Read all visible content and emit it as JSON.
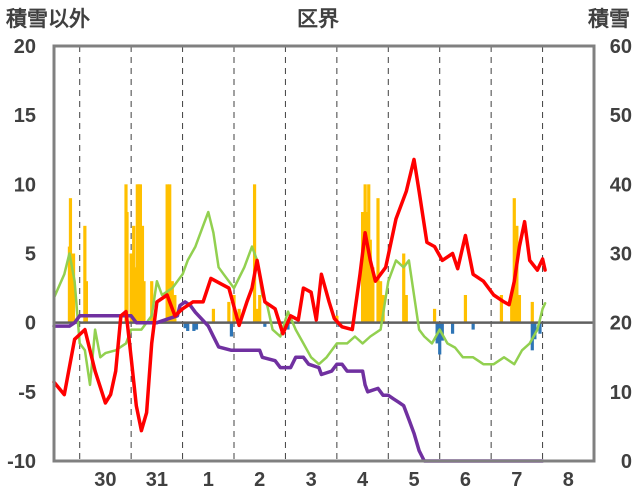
{
  "chart_data": {
    "type": "line",
    "title": "区界",
    "left_axis_label": "積雪以外",
    "right_axis_label": "積雪",
    "left_axis": {
      "min": -10,
      "max": 20,
      "ticks": [
        20,
        15,
        10,
        5,
        0,
        -5,
        -10
      ]
    },
    "right_axis": {
      "min": 0,
      "max": 60,
      "ticks": [
        60,
        50,
        40,
        30,
        20,
        10,
        0
      ]
    },
    "x_ticks": [
      "30",
      "31",
      "1",
      "2",
      "3",
      "4",
      "5",
      "6",
      "7",
      "8"
    ],
    "x_range": [
      -1.0,
      9.5
    ],
    "grid": "vertical dashed lines at day boundaries",
    "colors": {
      "precip_bars": "#ffc000",
      "negative_bars": "#2e75b6",
      "snow_depth": "#7030a0",
      "temperature_red": "#ff0000",
      "temperature_green": "#92d050",
      "frame": "#808080",
      "zero_line": "#606060"
    },
    "series": [
      {
        "axis": "left",
        "style": "line",
        "color_key": "temperature_red",
        "points": [
          [
            -1.0,
            -4.3
          ],
          [
            -0.8,
            -5.2
          ],
          [
            -0.6,
            -1.2
          ],
          [
            -0.4,
            -0.5
          ],
          [
            -0.2,
            -3.5
          ],
          [
            0.0,
            -5.8
          ],
          [
            0.1,
            -5.2
          ],
          [
            0.2,
            -3.5
          ],
          [
            0.3,
            0.5
          ],
          [
            0.4,
            0.8
          ],
          [
            0.5,
            -2.5
          ],
          [
            0.6,
            -6.0
          ],
          [
            0.7,
            -7.8
          ],
          [
            0.8,
            -6.5
          ],
          [
            0.9,
            -1.5
          ],
          [
            1.0,
            1.5
          ],
          [
            1.2,
            2.0
          ],
          [
            1.35,
            0.5
          ],
          [
            1.5,
            1.0
          ],
          [
            1.7,
            1.5
          ],
          [
            1.9,
            1.5
          ],
          [
            2.05,
            3.2
          ],
          [
            2.25,
            2.8
          ],
          [
            2.4,
            2.5
          ],
          [
            2.6,
            -0.2
          ],
          [
            2.75,
            1.5
          ],
          [
            2.85,
            2.5
          ],
          [
            2.95,
            4.5
          ],
          [
            3.1,
            1.5
          ],
          [
            3.3,
            1.0
          ],
          [
            3.45,
            -0.8
          ],
          [
            3.6,
            0.5
          ],
          [
            3.75,
            0.2
          ],
          [
            3.85,
            2.5
          ],
          [
            4.0,
            2.2
          ],
          [
            4.1,
            0.2
          ],
          [
            4.2,
            3.5
          ],
          [
            4.35,
            1.5
          ],
          [
            4.45,
            0.3
          ],
          [
            4.6,
            -0.3
          ],
          [
            4.8,
            -0.5
          ],
          [
            4.95,
            3.5
          ],
          [
            5.05,
            6.5
          ],
          [
            5.15,
            4.5
          ],
          [
            5.25,
            3.0
          ],
          [
            5.45,
            4.0
          ],
          [
            5.65,
            7.5
          ],
          [
            5.85,
            9.5
          ],
          [
            6.0,
            11.8
          ],
          [
            6.1,
            9.5
          ],
          [
            6.25,
            5.8
          ],
          [
            6.4,
            5.5
          ],
          [
            6.55,
            4.5
          ],
          [
            6.75,
            5.0
          ],
          [
            6.85,
            3.9
          ],
          [
            7.0,
            6.3
          ],
          [
            7.15,
            3.5
          ],
          [
            7.35,
            3.0
          ],
          [
            7.55,
            2.0
          ],
          [
            7.75,
            1.5
          ],
          [
            7.85,
            1.3
          ],
          [
            7.95,
            3.0
          ],
          [
            8.05,
            5.5
          ],
          [
            8.15,
            7.3
          ],
          [
            8.25,
            4.5
          ],
          [
            8.4,
            3.8
          ],
          [
            8.5,
            4.6
          ],
          [
            8.55,
            3.8
          ]
        ]
      },
      {
        "axis": "left",
        "style": "line",
        "color_key": "temperature_green",
        "points": [
          [
            -1.0,
            1.8
          ],
          [
            -0.8,
            3.5
          ],
          [
            -0.7,
            5.0
          ],
          [
            -0.6,
            3.0
          ],
          [
            -0.5,
            -1.5
          ],
          [
            -0.4,
            -2.0
          ],
          [
            -0.3,
            -4.5
          ],
          [
            -0.2,
            -0.5
          ],
          [
            -0.1,
            -2.5
          ],
          [
            0.0,
            -2.2
          ],
          [
            0.2,
            -2.0
          ],
          [
            0.4,
            -1.5
          ],
          [
            0.5,
            -0.5
          ],
          [
            0.7,
            -0.5
          ],
          [
            0.9,
            0.5
          ],
          [
            1.0,
            3.0
          ],
          [
            1.1,
            2.0
          ],
          [
            1.3,
            2.5
          ],
          [
            1.5,
            3.5
          ],
          [
            1.6,
            4.5
          ],
          [
            1.75,
            5.5
          ],
          [
            1.9,
            7.0
          ],
          [
            2.0,
            8.0
          ],
          [
            2.1,
            6.5
          ],
          [
            2.2,
            4.0
          ],
          [
            2.3,
            3.5
          ],
          [
            2.5,
            2.5
          ],
          [
            2.7,
            4.0
          ],
          [
            2.85,
            5.5
          ],
          [
            2.95,
            4.5
          ],
          [
            3.05,
            2.0
          ],
          [
            3.15,
            1.2
          ],
          [
            3.25,
            -0.5
          ],
          [
            3.4,
            -1.0
          ],
          [
            3.55,
            0.8
          ],
          [
            3.7,
            -0.5
          ],
          [
            3.85,
            -1.5
          ],
          [
            4.0,
            -2.5
          ],
          [
            4.15,
            -3.0
          ],
          [
            4.3,
            -2.5
          ],
          [
            4.5,
            -1.5
          ],
          [
            4.7,
            -1.5
          ],
          [
            4.85,
            -1.0
          ],
          [
            5.0,
            -1.5
          ],
          [
            5.15,
            -1.0
          ],
          [
            5.35,
            -0.5
          ],
          [
            5.5,
            3.0
          ],
          [
            5.65,
            4.5
          ],
          [
            5.8,
            4.0
          ],
          [
            5.9,
            4.5
          ],
          [
            6.0,
            2.0
          ],
          [
            6.1,
            -0.5
          ],
          [
            6.2,
            -1.0
          ],
          [
            6.35,
            -1.5
          ],
          [
            6.5,
            -0.5
          ],
          [
            6.65,
            -1.5
          ],
          [
            6.8,
            -1.8
          ],
          [
            6.95,
            -2.5
          ],
          [
            7.15,
            -2.5
          ],
          [
            7.35,
            -3.0
          ],
          [
            7.55,
            -3.0
          ],
          [
            7.75,
            -2.5
          ],
          [
            7.95,
            -3.0
          ],
          [
            8.1,
            -2.0
          ],
          [
            8.25,
            -1.5
          ],
          [
            8.4,
            -0.5
          ],
          [
            8.5,
            1.0
          ],
          [
            8.55,
            1.4
          ]
        ]
      },
      {
        "axis": "right",
        "style": "step",
        "color_key": "snow_depth",
        "points": [
          [
            -1.0,
            19.5
          ],
          [
            -0.7,
            19.5
          ],
          [
            -0.6,
            20.0
          ],
          [
            -0.5,
            21.0
          ],
          [
            0.5,
            21.0
          ],
          [
            0.6,
            20.0
          ],
          [
            1.0,
            20.0
          ],
          [
            1.2,
            20.5
          ],
          [
            1.4,
            21.0
          ],
          [
            1.45,
            22.5
          ],
          [
            1.55,
            23.0
          ],
          [
            1.65,
            22.5
          ],
          [
            1.75,
            21.5
          ],
          [
            2.0,
            19.5
          ],
          [
            2.1,
            18.0
          ],
          [
            2.2,
            16.5
          ],
          [
            2.45,
            16.0
          ],
          [
            3.0,
            16.0
          ],
          [
            3.05,
            15.0
          ],
          [
            3.3,
            14.5
          ],
          [
            3.4,
            13.5
          ],
          [
            3.6,
            13.5
          ],
          [
            3.7,
            15.0
          ],
          [
            3.85,
            15.0
          ],
          [
            3.95,
            14.0
          ],
          [
            4.15,
            13.5
          ],
          [
            4.2,
            12.5
          ],
          [
            4.4,
            13.0
          ],
          [
            4.5,
            14.0
          ],
          [
            4.6,
            14.0
          ],
          [
            4.7,
            13.0
          ],
          [
            4.85,
            13.0
          ],
          [
            5.0,
            13.0
          ],
          [
            5.05,
            11.0
          ],
          [
            5.1,
            10.0
          ],
          [
            5.3,
            10.5
          ],
          [
            5.4,
            9.5
          ],
          [
            5.5,
            9.5
          ],
          [
            5.6,
            9.0
          ],
          [
            5.7,
            8.5
          ],
          [
            5.8,
            8.0
          ],
          [
            5.9,
            6.0
          ],
          [
            6.0,
            4.0
          ],
          [
            6.1,
            1.5
          ],
          [
            6.2,
            0.0
          ],
          [
            8.5,
            0.0
          ]
        ]
      },
      {
        "axis": "left",
        "style": "bar",
        "color_key": "precip_bars",
        "points": [
          [
            -0.7,
            5.5
          ],
          [
            -0.68,
            9.0
          ],
          [
            -0.62,
            5.0
          ],
          [
            -0.4,
            7.0
          ],
          [
            -0.37,
            3.0
          ],
          [
            0.4,
            10.0
          ],
          [
            0.42,
            8.0
          ],
          [
            0.5,
            5.0
          ],
          [
            0.52,
            3.0
          ],
          [
            0.55,
            7.0
          ],
          [
            0.58,
            4.0
          ],
          [
            0.62,
            10.0
          ],
          [
            0.65,
            10.0
          ],
          [
            0.68,
            10.0
          ],
          [
            0.72,
            7.0
          ],
          [
            0.75,
            3.0
          ],
          [
            0.9,
            3.0
          ],
          [
            1.2,
            10.0
          ],
          [
            1.25,
            10.0
          ],
          [
            1.3,
            3.0
          ],
          [
            1.35,
            2.0
          ],
          [
            2.1,
            1.0
          ],
          [
            2.4,
            1.5
          ],
          [
            2.5,
            2.0
          ],
          [
            2.6,
            1.0
          ],
          [
            2.9,
            10.0
          ],
          [
            2.95,
            1.0
          ],
          [
            3.0,
            2.0
          ],
          [
            4.5,
            0.5
          ],
          [
            5.0,
            8.0
          ],
          [
            5.05,
            10.0
          ],
          [
            5.08,
            8.0
          ],
          [
            5.12,
            10.0
          ],
          [
            5.15,
            6.0
          ],
          [
            5.2,
            4.0
          ],
          [
            5.3,
            9.0
          ],
          [
            5.35,
            3.0
          ],
          [
            5.4,
            2.0
          ],
          [
            5.8,
            5.0
          ],
          [
            5.85,
            2.0
          ],
          [
            6.4,
            1.0
          ],
          [
            7.0,
            2.0
          ],
          [
            7.7,
            2.0
          ],
          [
            7.9,
            2.0
          ],
          [
            7.95,
            9.0
          ],
          [
            8.0,
            7.0
          ],
          [
            8.05,
            2.0
          ],
          [
            8.3,
            1.5
          ]
        ]
      },
      {
        "axis": "left",
        "style": "bar",
        "color_key": "negative_bars",
        "points": [
          [
            1.55,
            -0.4
          ],
          [
            1.6,
            -0.6
          ],
          [
            1.72,
            -0.6
          ],
          [
            1.77,
            -0.5
          ],
          [
            2.45,
            -1.0
          ],
          [
            3.1,
            -0.3
          ],
          [
            3.55,
            -0.5
          ],
          [
            4.55,
            -0.3
          ],
          [
            6.45,
            -1.5
          ],
          [
            6.5,
            -2.3
          ],
          [
            6.55,
            -1.3
          ],
          [
            6.75,
            -0.8
          ],
          [
            7.15,
            -0.5
          ],
          [
            8.3,
            -2.0
          ],
          [
            8.35,
            -1.2
          ],
          [
            8.45,
            -0.8
          ]
        ]
      }
    ]
  }
}
